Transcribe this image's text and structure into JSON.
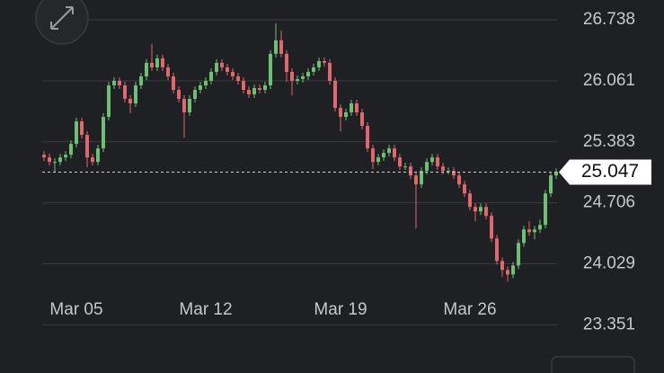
{
  "chart_data": {
    "type": "candlestick",
    "categories": [
      null,
      null,
      null,
      null,
      null,
      null,
      "Mar 05",
      null,
      null,
      null,
      null,
      null,
      null,
      null,
      null,
      null,
      null,
      null,
      null,
      null,
      null,
      null,
      null,
      null,
      null,
      null,
      null,
      null,
      null,
      null,
      "Mar 12",
      null,
      null,
      null,
      null,
      null,
      null,
      null,
      null,
      null,
      null,
      null,
      null,
      null,
      null,
      null,
      null,
      null,
      null,
      null,
      null,
      null,
      null,
      null,
      null,
      "Mar 19",
      null,
      null,
      null,
      null,
      null,
      null,
      null,
      null,
      null,
      null,
      null,
      null,
      null,
      null,
      null,
      null,
      null,
      null,
      null,
      null,
      null,
      null,
      null,
      "Mar 26",
      null,
      null,
      null,
      null,
      null,
      null,
      null,
      null,
      null,
      null,
      null,
      null,
      null,
      null,
      null,
      null
    ],
    "open": [
      25.24,
      25.21,
      25.16,
      25.16,
      25.21,
      25.24,
      25.36,
      25.61,
      25.46,
      25.21,
      25.16,
      25.31,
      25.66,
      26.01,
      26.06,
      26.01,
      25.86,
      25.81,
      26.01,
      26.11,
      26.26,
      26.21,
      26.31,
      26.21,
      26.11,
      25.96,
      25.86,
      25.71,
      25.86,
      25.96,
      26.01,
      26.06,
      26.16,
      26.26,
      26.21,
      26.16,
      26.11,
      26.06,
      25.96,
      25.91,
      25.98,
      25.96,
      26.01,
      26.36,
      26.51,
      26.36,
      26.16,
      26.06,
      26.08,
      26.11,
      26.16,
      26.21,
      26.28,
      26.26,
      26.06,
      25.76,
      25.66,
      25.71,
      25.81,
      25.71,
      25.56,
      25.31,
      25.16,
      25.21,
      25.26,
      25.31,
      25.21,
      25.11,
      25.11,
      25.01,
      24.91,
      25.06,
      25.16,
      25.21,
      25.11,
      25.06,
      25.06,
      25.01,
      24.91,
      24.81,
      24.66,
      24.61,
      24.66,
      24.56,
      24.31,
      24.06,
      23.96,
      23.91,
      24.01,
      24.26,
      24.41,
      24.38,
      24.41,
      24.46,
      24.81,
      25.01
    ],
    "high": [
      25.28,
      25.25,
      25.2,
      25.25,
      25.28,
      25.4,
      25.65,
      25.65,
      25.5,
      25.25,
      25.35,
      25.7,
      26.05,
      26.1,
      26.1,
      26.05,
      25.9,
      26.05,
      26.15,
      26.3,
      26.47,
      26.35,
      26.35,
      26.25,
      26.15,
      26.0,
      25.9,
      25.9,
      26.0,
      26.05,
      26.1,
      26.2,
      26.3,
      26.3,
      26.25,
      26.2,
      26.15,
      26.1,
      26.0,
      26.02,
      26.02,
      26.05,
      26.4,
      26.7,
      26.62,
      26.4,
      26.2,
      26.12,
      26.15,
      26.2,
      26.25,
      26.32,
      26.32,
      26.3,
      26.1,
      25.8,
      25.75,
      25.85,
      25.85,
      25.75,
      25.6,
      25.35,
      25.25,
      25.3,
      25.35,
      25.35,
      25.25,
      25.15,
      25.15,
      25.05,
      25.1,
      25.2,
      25.25,
      25.25,
      25.15,
      25.1,
      25.1,
      25.05,
      24.95,
      24.85,
      24.7,
      24.7,
      24.7,
      24.6,
      24.35,
      24.1,
      24.0,
      24.05,
      24.3,
      24.45,
      24.5,
      24.45,
      24.52,
      24.85,
      25.05,
      25.09
    ],
    "low": [
      25.17,
      25.12,
      25.05,
      25.12,
      25.17,
      25.2,
      25.32,
      25.42,
      25.1,
      25.12,
      25.12,
      25.27,
      25.62,
      25.97,
      25.97,
      25.82,
      25.7,
      25.77,
      25.97,
      26.07,
      26.17,
      26.17,
      26.17,
      26.07,
      25.92,
      25.82,
      25.43,
      25.67,
      25.82,
      25.92,
      25.97,
      26.02,
      26.12,
      26.17,
      26.12,
      26.07,
      26.02,
      25.92,
      25.87,
      25.87,
      25.92,
      25.92,
      25.97,
      26.32,
      26.32,
      26.05,
      25.9,
      26.02,
      26.04,
      26.07,
      26.12,
      26.17,
      26.22,
      26.02,
      25.72,
      25.5,
      25.62,
      25.67,
      25.67,
      25.52,
      25.27,
      25.08,
      25.12,
      25.17,
      25.22,
      25.17,
      25.07,
      25.07,
      24.97,
      24.42,
      24.87,
      25.02,
      25.12,
      25.07,
      25.02,
      25.02,
      24.97,
      24.87,
      24.77,
      24.62,
      24.5,
      24.57,
      24.52,
      24.27,
      24.02,
      23.88,
      23.83,
      23.87,
      23.97,
      24.22,
      24.34,
      24.3,
      24.37,
      24.42,
      24.77,
      24.97
    ],
    "close": [
      25.21,
      25.16,
      25.16,
      25.21,
      25.24,
      25.36,
      25.61,
      25.46,
      25.21,
      25.16,
      25.31,
      25.66,
      26.01,
      26.06,
      26.01,
      25.86,
      25.81,
      26.01,
      26.11,
      26.26,
      26.21,
      26.31,
      26.21,
      26.11,
      25.96,
      25.86,
      25.71,
      25.86,
      25.96,
      26.01,
      26.06,
      26.16,
      26.26,
      26.21,
      26.16,
      26.11,
      26.06,
      25.96,
      25.91,
      25.98,
      25.96,
      26.01,
      26.36,
      26.51,
      26.36,
      26.16,
      26.06,
      26.08,
      26.11,
      26.16,
      26.21,
      26.28,
      26.26,
      26.06,
      25.76,
      25.66,
      25.71,
      25.81,
      25.71,
      25.56,
      25.31,
      25.16,
      25.21,
      25.26,
      25.31,
      25.21,
      25.11,
      25.11,
      25.01,
      24.91,
      25.06,
      25.16,
      25.21,
      25.11,
      25.06,
      25.06,
      25.01,
      24.91,
      24.81,
      24.66,
      24.61,
      24.66,
      24.56,
      24.31,
      24.06,
      23.96,
      23.91,
      24.01,
      24.26,
      24.41,
      24.38,
      24.41,
      24.46,
      24.81,
      25.01,
      25.05
    ],
    "up_color": "#6cbf73",
    "down_color": "#e0676d",
    "ylim": [
      22.816,
      26.958
    ],
    "yticks": [
      23.351,
      24.029,
      24.706,
      25.383,
      26.061,
      26.738
    ],
    "grid": true,
    "last_value": 25.047
  }
}
